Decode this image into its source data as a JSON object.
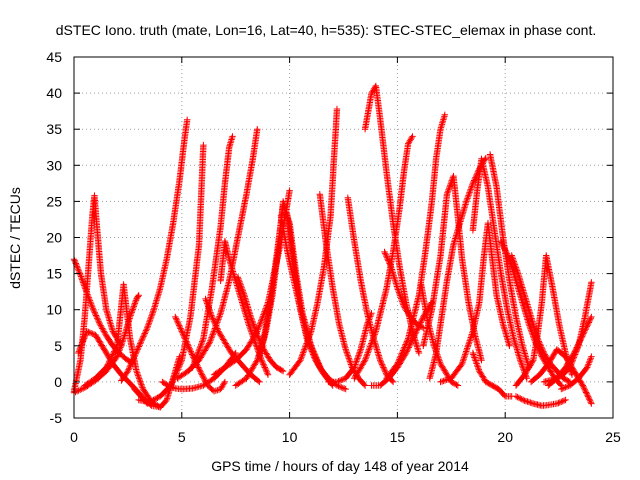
{
  "chart_data": {
    "type": "scatter",
    "title": "dSTEC Iono. truth (mate, Lon=16, Lat=40, h=535): STEC-STEC_elemax in phase cont.",
    "xlabel": "GPS time / hours of day 148 of year 2014",
    "ylabel": "dSTEC  / TECUs",
    "xlim": [
      0,
      25
    ],
    "ylim": [
      -5,
      45
    ],
    "xticks": [
      0,
      5,
      10,
      15,
      20,
      25
    ],
    "yticks": [
      -5,
      0,
      5,
      10,
      15,
      20,
      25,
      30,
      35,
      40,
      45
    ],
    "grid": true,
    "marker": "+",
    "colors": {
      "series": "#ff0000",
      "grid": "#a0a0a0",
      "axis": "#000000"
    },
    "series": [
      {
        "x": [
          0.0,
          0.3,
          0.6,
          0.9,
          1.2,
          1.5,
          1.8,
          2.1,
          2.4,
          2.7
        ],
        "y": [
          17.0,
          14.8,
          12.3,
          10.0,
          8.0,
          6.4,
          5.0,
          4.0,
          3.2,
          2.6
        ]
      },
      {
        "x": [
          0.0,
          0.3,
          0.5,
          0.7,
          0.85,
          0.95,
          1.05,
          1.25,
          1.5,
          1.8,
          2.2
        ],
        "y": [
          -1.3,
          3.0,
          9.0,
          17.0,
          23.0,
          25.8,
          22.0,
          15.0,
          10.0,
          7.0,
          5.0
        ]
      },
      {
        "x": [
          0.0,
          0.5,
          1.0,
          1.5,
          2.0,
          2.3,
          2.6,
          2.9,
          3.0
        ],
        "y": [
          -1.5,
          -0.8,
          0.2,
          1.5,
          3.5,
          6.0,
          9.0,
          11.5,
          12.0
        ]
      },
      {
        "x": [
          0.5,
          1.0,
          1.5,
          2.0,
          2.3,
          2.6,
          2.9,
          3.2,
          3.6,
          4.0
        ],
        "y": [
          -0.5,
          0.5,
          2.0,
          5.0,
          13.5,
          6.0,
          1.5,
          -1.0,
          -2.8,
          -3.5
        ]
      },
      {
        "x": [
          0.2,
          0.6,
          1.0,
          1.4,
          1.8,
          2.2,
          2.6,
          3.0,
          3.4
        ],
        "y": [
          4.0,
          7.0,
          6.5,
          4.5,
          2.5,
          1.0,
          -0.2,
          -1.5,
          -3.0
        ]
      },
      {
        "x": [
          2.8,
          3.2,
          3.6,
          4.0,
          4.3,
          4.6,
          4.9
        ],
        "y": [
          -1.0,
          -2.3,
          -3.3,
          -3.5,
          -2.5,
          0.5,
          3.5
        ]
      },
      {
        "x": [
          2.2,
          2.5,
          2.8,
          3.1,
          3.4,
          3.7,
          4.0,
          4.3,
          4.6,
          4.9,
          5.1,
          5.25
        ],
        "y": [
          0.2,
          1.5,
          3.5,
          5.5,
          7.5,
          10.0,
          13.0,
          17.0,
          22.0,
          28.0,
          33.0,
          36.3
        ]
      },
      {
        "x": [
          3.0,
          3.5,
          4.0,
          4.5,
          5.0,
          5.4,
          5.8,
          6.0
        ],
        "y": [
          -2.5,
          -2.8,
          -2.0,
          -0.5,
          3.0,
          9.0,
          19.0,
          32.8
        ]
      },
      {
        "x": [
          4.1,
          4.4,
          4.7,
          5.0,
          5.5,
          6.0,
          6.5,
          7.0,
          7.5
        ],
        "y": [
          0.0,
          -0.6,
          -0.9,
          -1.0,
          -0.9,
          -0.5,
          0.5,
          2.0,
          4.0
        ]
      },
      {
        "x": [
          4.7,
          5.0,
          5.3,
          5.6,
          5.9,
          6.2,
          6.5,
          6.8,
          7.0
        ],
        "y": [
          9.0,
          7.0,
          5.0,
          3.0,
          1.2,
          -0.5,
          -1.3,
          -1.0,
          0.0
        ]
      },
      {
        "x": [
          4.8,
          5.3,
          5.8,
          6.3,
          6.8,
          7.2,
          7.6,
          8.0,
          8.3,
          8.5
        ],
        "y": [
          0.5,
          1.5,
          3.0,
          5.5,
          9.5,
          14.0,
          20.0,
          26.0,
          31.0,
          35.0
        ]
      },
      {
        "x": [
          5.5,
          6.0,
          6.4,
          6.8,
          7.0,
          7.2,
          7.35
        ],
        "y": [
          2.0,
          6.0,
          13.0,
          21.5,
          27.5,
          32.5,
          34.0
        ]
      },
      {
        "x": [
          6.1,
          6.4,
          6.7,
          7.0,
          7.3,
          7.6,
          7.9,
          8.2,
          8.6
        ],
        "y": [
          11.5,
          9.0,
          7.0,
          5.5,
          4.0,
          3.0,
          2.0,
          1.0,
          0.0
        ]
      },
      {
        "x": [
          6.8,
          7.0,
          7.2,
          7.5,
          7.8,
          8.1,
          8.4,
          8.7,
          9.0
        ],
        "y": [
          14.0,
          19.5,
          17.0,
          14.0,
          11.0,
          8.0,
          5.5,
          3.0,
          1.0
        ]
      },
      {
        "x": [
          6.5,
          7.0,
          7.5,
          8.0,
          8.5,
          9.0,
          9.5,
          9.8,
          10.0
        ],
        "y": [
          1.0,
          2.0,
          3.0,
          4.5,
          7.0,
          11.0,
          18.0,
          23.0,
          26.5
        ]
      },
      {
        "x": [
          7.6,
          7.9,
          8.2,
          8.5,
          8.8,
          9.1,
          9.4,
          9.7
        ],
        "y": [
          14.5,
          12.0,
          9.0,
          6.5,
          4.5,
          3.0,
          2.0,
          1.5
        ]
      },
      {
        "x": [
          7.5,
          8.0,
          8.5,
          8.8,
          9.1,
          9.4,
          9.7,
          10.0,
          10.3,
          10.6,
          11.0,
          11.5
        ],
        "y": [
          -0.5,
          0.5,
          3.0,
          6.0,
          11.0,
          17.5,
          24.5,
          22.0,
          15.0,
          9.5,
          5.0,
          1.5
        ]
      },
      {
        "x": [
          8.6,
          8.9,
          9.2,
          9.5,
          9.7,
          9.9,
          10.2,
          10.5,
          10.8,
          11.2,
          11.6,
          12.0
        ],
        "y": [
          3.5,
          7.0,
          12.0,
          19.0,
          25.0,
          23.0,
          16.0,
          10.0,
          6.0,
          3.0,
          1.0,
          -0.5
        ]
      },
      {
        "x": [
          9.6,
          9.9,
          10.2,
          10.5,
          10.8,
          11.1,
          11.4,
          11.8,
          12.2,
          12.6
        ],
        "y": [
          23.0,
          18.0,
          14.0,
          10.0,
          6.5,
          4.0,
          2.0,
          0.5,
          -0.5,
          -1.0
        ]
      },
      {
        "x": [
          10.0,
          10.5,
          11.0,
          11.3,
          11.6,
          11.9,
          12.1,
          12.2
        ],
        "y": [
          1.0,
          3.0,
          7.0,
          11.0,
          16.0,
          23.0,
          33.0,
          37.8
        ]
      },
      {
        "x": [
          11.4,
          11.7,
          12.0,
          12.3,
          12.6,
          12.9,
          13.2,
          13.5
        ],
        "y": [
          26.0,
          19.0,
          13.0,
          8.0,
          4.5,
          2.0,
          0.5,
          -0.5
        ]
      },
      {
        "x": [
          11.8,
          12.2,
          12.6,
          13.0,
          13.3,
          13.6,
          13.8
        ],
        "y": [
          0.0,
          0.0,
          0.5,
          2.0,
          4.5,
          8.0,
          9.5
        ]
      },
      {
        "x": [
          12.7,
          13.0,
          13.3,
          13.6,
          13.9,
          14.2,
          14.5,
          14.8
        ],
        "y": [
          25.5,
          19.5,
          14.0,
          9.5,
          6.0,
          3.0,
          1.0,
          0.0
        ]
      },
      {
        "x": [
          13.5,
          13.8,
          14.0,
          14.2,
          14.5,
          14.8,
          15.1,
          15.4,
          15.7,
          16.0
        ],
        "y": [
          35.0,
          40.0,
          41.0,
          36.5,
          29.0,
          22.0,
          16.0,
          11.0,
          7.0,
          4.0
        ]
      },
      {
        "x": [
          13.0,
          13.5,
          14.0,
          14.5,
          14.8,
          15.1,
          15.3,
          15.5,
          15.7
        ],
        "y": [
          0.5,
          3.0,
          7.0,
          13.0,
          18.0,
          24.0,
          29.0,
          33.0,
          34.0
        ]
      },
      {
        "x": [
          14.4,
          14.7,
          15.0,
          15.3,
          15.6,
          15.9,
          16.2
        ],
        "y": [
          18.0,
          16.0,
          13.0,
          10.5,
          9.0,
          8.0,
          7.5
        ]
      },
      {
        "x": [
          13.8,
          14.2,
          14.6,
          15.0,
          15.4,
          15.8,
          16.2,
          16.6
        ],
        "y": [
          -0.5,
          -0.5,
          0.5,
          2.0,
          4.0,
          6.5,
          9.0,
          11.0
        ]
      },
      {
        "x": [
          14.5,
          15.0,
          15.5,
          16.0,
          16.3,
          16.6,
          16.8,
          17.0,
          17.2
        ],
        "y": [
          0.5,
          2.5,
          6.0,
          12.0,
          18.0,
          25.0,
          31.0,
          35.0,
          37.0
        ]
      },
      {
        "x": [
          16.1,
          16.4,
          16.7,
          17.0,
          17.3,
          17.5,
          17.8
        ],
        "y": [
          13.5,
          8.5,
          5.0,
          2.5,
          1.0,
          0.0,
          -0.5
        ]
      },
      {
        "x": [
          16.2,
          16.6,
          17.0,
          17.3,
          17.6,
          17.8,
          18.0,
          18.3,
          18.6,
          18.9
        ],
        "y": [
          5.0,
          10.0,
          17.5,
          26.0,
          28.5,
          23.0,
          17.0,
          11.0,
          6.5,
          3.0
        ]
      },
      {
        "x": [
          16.5,
          16.8,
          17.0,
          17.3,
          17.6,
          17.9,
          18.2,
          18.5,
          18.8,
          19.1
        ],
        "y": [
          0.5,
          4.0,
          8.0,
          14.0,
          19.0,
          22.0,
          25.0,
          27.5,
          29.5,
          31.0
        ]
      },
      {
        "x": [
          17.0,
          17.5,
          18.0,
          18.5,
          18.8,
          19.0,
          19.2,
          19.4,
          19.6,
          19.9,
          20.2
        ],
        "y": [
          0.0,
          0.5,
          2.5,
          7.0,
          11.0,
          17.0,
          22.0,
          17.0,
          12.0,
          8.0,
          5.0
        ]
      },
      {
        "x": [
          18.5,
          18.7,
          18.9,
          19.2,
          19.5,
          19.8,
          20.1,
          20.4,
          20.7,
          21.0
        ],
        "y": [
          21.0,
          26.5,
          30.9,
          27.0,
          21.0,
          15.0,
          10.0,
          6.0,
          3.0,
          0.5
        ]
      },
      {
        "x": [
          19.3,
          19.6,
          19.9,
          20.2,
          20.5,
          20.8,
          21.1
        ],
        "y": [
          31.5,
          27.0,
          20.0,
          14.0,
          9.0,
          5.0,
          2.0
        ]
      },
      {
        "x": [
          18.5,
          18.8,
          19.1,
          19.4,
          19.7,
          20.0,
          20.3
        ],
        "y": [
          4.0,
          1.5,
          0.0,
          -0.5,
          -1.0,
          -2.0,
          -2.0
        ]
      },
      {
        "x": [
          20.5,
          20.9,
          21.3,
          21.7,
          22.0,
          22.4,
          22.8
        ],
        "y": [
          -2.0,
          -2.6,
          -3.0,
          -3.3,
          -3.2,
          -3.0,
          -2.5
        ]
      },
      {
        "x": [
          19.8,
          20.2,
          20.5,
          20.8,
          21.1,
          21.4,
          21.7,
          22.0,
          22.3,
          22.6
        ],
        "y": [
          19.5,
          17.0,
          14.0,
          11.0,
          8.0,
          5.5,
          3.5,
          2.0,
          0.5,
          -0.5
        ]
      },
      {
        "x": [
          20.3,
          20.6,
          20.9,
          21.2,
          21.5,
          21.8,
          22.1,
          22.4,
          22.7,
          23.0
        ],
        "y": [
          17.5,
          15.0,
          12.0,
          9.0,
          6.0,
          4.0,
          2.5,
          1.5,
          0.5,
          0.0
        ]
      },
      {
        "x": [
          20.5,
          20.9,
          21.3,
          21.5,
          21.7,
          21.9,
          22.2,
          22.5,
          22.8,
          23.1
        ],
        "y": [
          -0.5,
          1.0,
          3.0,
          6.5,
          11.0,
          17.5,
          13.0,
          8.0,
          4.0,
          1.0
        ]
      },
      {
        "x": [
          21.2,
          21.6,
          22.0,
          22.4,
          22.8,
          23.2,
          23.6,
          24.0
        ],
        "y": [
          0.0,
          1.0,
          2.5,
          4.5,
          3.5,
          1.5,
          -0.5,
          -3.0
        ]
      },
      {
        "x": [
          21.8,
          22.2,
          22.6,
          23.0,
          23.4,
          23.7,
          24.0
        ],
        "y": [
          0.0,
          0.3,
          0.8,
          2.0,
          5.0,
          9.0,
          13.8
        ]
      },
      {
        "x": [
          22.0,
          22.4,
          22.8,
          23.2,
          23.6,
          24.0
        ],
        "y": [
          -0.5,
          0.5,
          2.0,
          4.0,
          6.5,
          9.0
        ]
      },
      {
        "x": [
          22.6,
          23.0,
          23.4,
          23.8,
          24.0
        ],
        "y": [
          -1.0,
          -0.5,
          0.5,
          2.0,
          3.5
        ]
      }
    ]
  }
}
